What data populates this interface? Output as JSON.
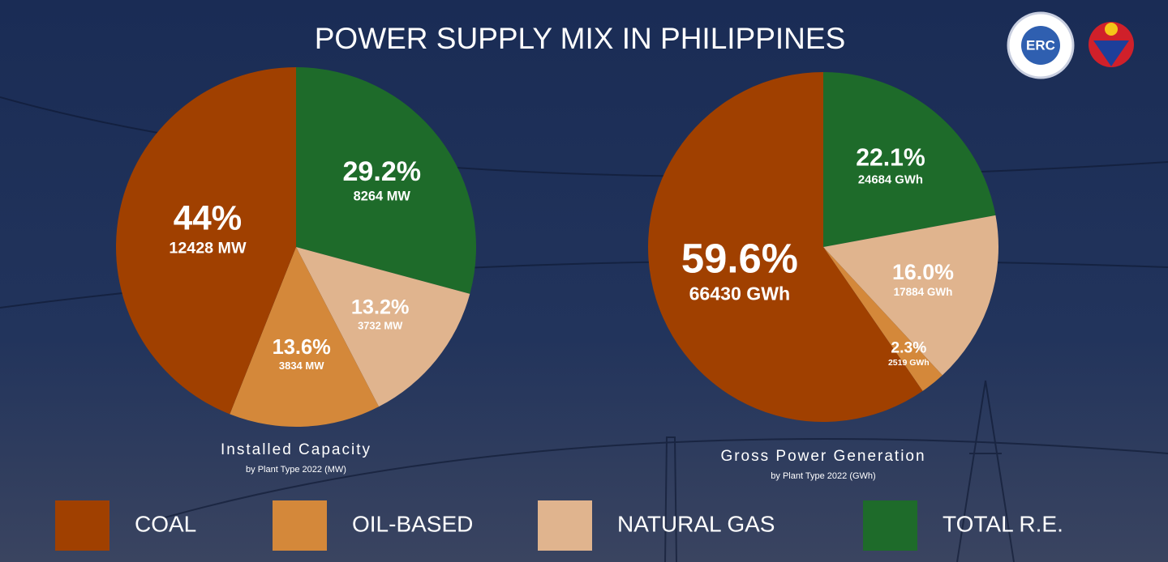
{
  "title": "POWER SUPPLY MIX IN PHILIPPINES",
  "logo_text": "ERC",
  "chart_data": [
    {
      "type": "pie",
      "title": "Installed Capacity",
      "subtitle": "by Plant Type 2022 (MW)",
      "categories": [
        "COAL",
        "OIL-BASED",
        "NATURAL GAS",
        "TOTAL R.E."
      ],
      "colors": [
        "#a04000",
        "#d4883a",
        "#e0b48e",
        "#1e6b2a"
      ],
      "values": [
        44,
        13.6,
        13.2,
        29.2
      ],
      "value_labels": [
        "44%",
        "13.6%",
        "13.2%",
        "29.2%"
      ],
      "amounts": [
        12428,
        3834,
        3732,
        8264
      ],
      "amount_labels": [
        "12428 MW",
        "3834 MW",
        "3732 MW",
        "8264 MW"
      ]
    },
    {
      "type": "pie",
      "title": "Gross Power Generation",
      "subtitle": "by Plant Type 2022 (GWh)",
      "categories": [
        "COAL",
        "OIL-BASED",
        "NATURAL GAS",
        "TOTAL R.E."
      ],
      "colors": [
        "#a04000",
        "#d4883a",
        "#e0b48e",
        "#1e6b2a"
      ],
      "values": [
        59.6,
        2.3,
        16.0,
        22.1
      ],
      "value_labels": [
        "59.6%",
        "2.3%",
        "16.0%",
        "22.1%"
      ],
      "amounts": [
        66430,
        2519,
        17884,
        24684
      ],
      "amount_labels": [
        "66430 GWh",
        "2519 GWh",
        "17884 GWh",
        "24684 GWh"
      ]
    }
  ]
}
